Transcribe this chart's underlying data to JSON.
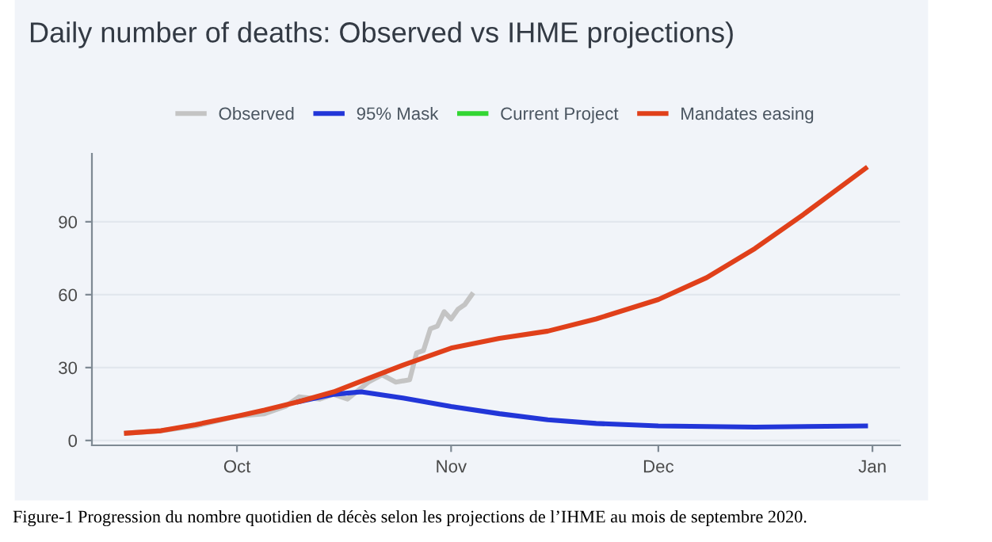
{
  "chart_data": {
    "type": "line",
    "title": "Daily number of deaths: Observed vs IHME projections)",
    "annotations": [
      "Figure-1 Progression du nombre quotidien de décès selon les projections de l’IHME au mois de septembre 2020."
    ],
    "series": [
      {
        "name": "Observed",
        "color": "#c4c4c4",
        "x": [
          "2020-09-15",
          "2020-09-20",
          "2020-09-25",
          "2020-10-01",
          "2020-10-05",
          "2020-10-08",
          "2020-10-10",
          "2020-10-13",
          "2020-10-15",
          "2020-10-17",
          "2020-10-20",
          "2020-10-22",
          "2020-10-24",
          "2020-10-26",
          "2020-10-27",
          "2020-10-28",
          "2020-10-29",
          "2020-10-30",
          "2020-10-31",
          "2020-11-01",
          "2020-11-02",
          "2020-11-03",
          "2020-11-04"
        ],
        "values": [
          3,
          4,
          6,
          10,
          11,
          14,
          18,
          17,
          19,
          17,
          24,
          27,
          24,
          25,
          36,
          37,
          46,
          47,
          53,
          50,
          54,
          56,
          60
        ]
      },
      {
        "name": "95% Mask",
        "color": "#2236d8",
        "x": [
          "2020-10-10",
          "2020-10-15",
          "2020-10-19",
          "2020-10-25",
          "2020-11-01",
          "2020-11-08",
          "2020-11-15",
          "2020-11-22",
          "2020-12-01",
          "2020-12-15",
          "2020-12-31"
        ],
        "values": [
          16,
          19,
          20,
          17.5,
          14,
          11,
          8.5,
          7,
          6,
          5.5,
          6
        ]
      },
      {
        "name": "Current Project",
        "color": "#33d633"
      },
      {
        "name": "Mandates easing",
        "color": "#e0401a",
        "x": [
          "2020-09-15",
          "2020-09-20",
          "2020-09-25",
          "2020-10-01",
          "2020-10-05",
          "2020-10-10",
          "2020-10-15",
          "2020-10-20",
          "2020-10-25",
          "2020-11-01",
          "2020-11-08",
          "2020-11-15",
          "2020-11-22",
          "2020-12-01",
          "2020-12-08",
          "2020-12-15",
          "2020-12-22",
          "2020-12-31"
        ],
        "values": [
          3,
          4,
          6.5,
          10,
          12.5,
          16,
          20,
          25.5,
          31,
          38,
          42,
          45,
          50,
          58,
          67,
          79,
          93,
          112
        ]
      }
    ],
    "xlim": [
      "2020-09-10",
      "2021-01-05"
    ],
    "xticks": [
      {
        "value": "2020-10-01",
        "label": "Oct"
      },
      {
        "value": "2020-11-01",
        "label": "Nov"
      },
      {
        "value": "2020-12-01",
        "label": "Dec"
      },
      {
        "value": "2021-01-01",
        "label": "Jan"
      }
    ],
    "ylim": [
      -2,
      118
    ],
    "yticks": [
      0,
      30,
      60,
      90
    ],
    "grid": "y",
    "legend": "top",
    "marker": "none",
    "line_style": "solid"
  }
}
